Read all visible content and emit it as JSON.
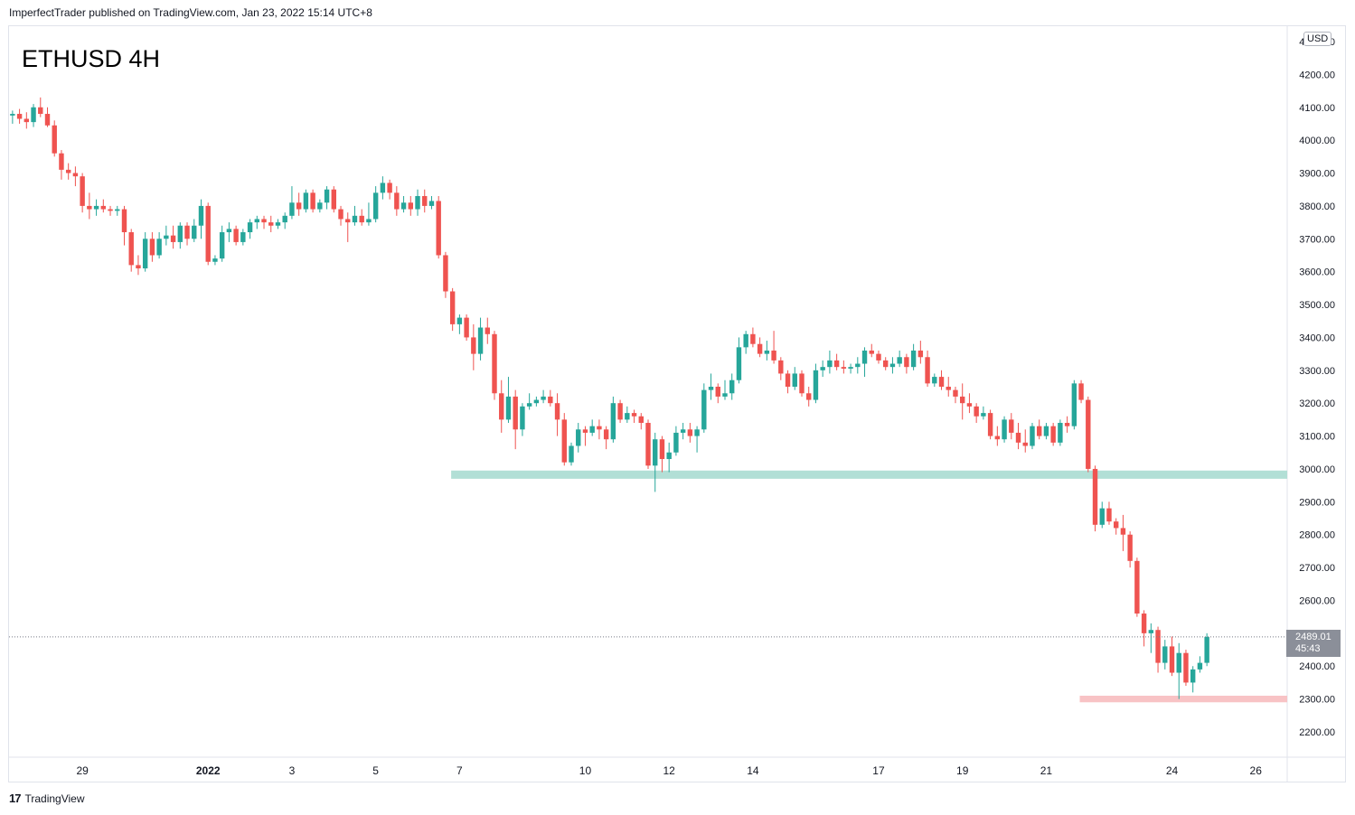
{
  "header": {
    "published": "ImperfectTrader published on TradingView.com, Jan 23, 2022 15:14 UTC+8"
  },
  "symbol": "ETHUSD 4H",
  "currency": "USD",
  "last_price": {
    "value": "2489.01",
    "countdown": "45:43"
  },
  "footer": {
    "brand": "TradingView",
    "logo_glyph": "17"
  },
  "colors": {
    "up": "#26a69a",
    "down": "#ef5350",
    "support": "#b2dfd6",
    "low_zone": "#f8c3c5",
    "grid": "#e0e3eb",
    "price_tag": "#8b8f99"
  },
  "chart_data": {
    "type": "candlestick",
    "ylim": [
      2130,
      4290
    ],
    "y_ticks": [
      "2200.00",
      "2300.00",
      "2400.00",
      "2500.00",
      "2600.00",
      "2700.00",
      "2800.00",
      "2900.00",
      "3000.00",
      "3100.00",
      "3200.00",
      "3300.00",
      "3400.00",
      "3500.00",
      "3600.00",
      "3700.00",
      "3800.00",
      "3900.00",
      "4000.00",
      "4100.00",
      "4200.00",
      "4300.00"
    ],
    "x_ticks": [
      {
        "label": "29",
        "day": -2,
        "bold": false
      },
      {
        "label": "2022",
        "day": 1,
        "bold": true
      },
      {
        "label": "3",
        "day": 3,
        "bold": false
      },
      {
        "label": "5",
        "day": 5,
        "bold": false
      },
      {
        "label": "7",
        "day": 7,
        "bold": false
      },
      {
        "label": "10",
        "day": 10,
        "bold": false
      },
      {
        "label": "12",
        "day": 12,
        "bold": false
      },
      {
        "label": "14",
        "day": 14,
        "bold": false
      },
      {
        "label": "17",
        "day": 17,
        "bold": false
      },
      {
        "label": "19",
        "day": 19,
        "bold": false
      },
      {
        "label": "21",
        "day": 21,
        "bold": false
      },
      {
        "label": "24",
        "day": 24,
        "bold": false
      },
      {
        "label": "26",
        "day": 26,
        "bold": false
      }
    ],
    "xlim_days": [
      -3.75,
      26.75
    ],
    "bar_hours": 4,
    "first_bar_day": -3.75,
    "support_zone": {
      "from_day": 6.8,
      "to_day": 26.75,
      "low": 2970,
      "high": 2995
    },
    "low_zone": {
      "from_day": 21.8,
      "to_day": 26.75,
      "low": 2290,
      "high": 2310
    },
    "last_price_line": 2489,
    "candles": [
      [
        4075,
        4090,
        4050,
        4080
      ],
      [
        4080,
        4095,
        4050,
        4065
      ],
      [
        4065,
        4085,
        4035,
        4055
      ],
      [
        4055,
        4110,
        4040,
        4100
      ],
      [
        4100,
        4130,
        4070,
        4080
      ],
      [
        4080,
        4100,
        4040,
        4045
      ],
      [
        4045,
        4060,
        3950,
        3960
      ],
      [
        3960,
        3970,
        3880,
        3910
      ],
      [
        3910,
        3930,
        3880,
        3900
      ],
      [
        3900,
        3920,
        3860,
        3890
      ],
      [
        3890,
        3900,
        3780,
        3800
      ],
      [
        3800,
        3840,
        3760,
        3790
      ],
      [
        3790,
        3820,
        3770,
        3800
      ],
      [
        3800,
        3820,
        3780,
        3790
      ],
      [
        3790,
        3800,
        3770,
        3785
      ],
      [
        3785,
        3800,
        3770,
        3790
      ],
      [
        3790,
        3800,
        3680,
        3720
      ],
      [
        3720,
        3730,
        3600,
        3620
      ],
      [
        3620,
        3650,
        3590,
        3610
      ],
      [
        3610,
        3720,
        3600,
        3700
      ],
      [
        3700,
        3720,
        3630,
        3650
      ],
      [
        3650,
        3720,
        3640,
        3700
      ],
      [
        3700,
        3740,
        3680,
        3710
      ],
      [
        3710,
        3740,
        3670,
        3690
      ],
      [
        3690,
        3750,
        3670,
        3740
      ],
      [
        3740,
        3750,
        3680,
        3700
      ],
      [
        3700,
        3760,
        3690,
        3740
      ],
      [
        3740,
        3820,
        3700,
        3800
      ],
      [
        3800,
        3810,
        3620,
        3630
      ],
      [
        3630,
        3650,
        3620,
        3640
      ],
      [
        3640,
        3740,
        3630,
        3720
      ],
      [
        3720,
        3750,
        3690,
        3730
      ],
      [
        3730,
        3740,
        3680,
        3690
      ],
      [
        3690,
        3730,
        3680,
        3720
      ],
      [
        3720,
        3760,
        3700,
        3750
      ],
      [
        3750,
        3770,
        3730,
        3760
      ],
      [
        3760,
        3770,
        3730,
        3750
      ],
      [
        3750,
        3770,
        3720,
        3740
      ],
      [
        3740,
        3760,
        3730,
        3750
      ],
      [
        3750,
        3780,
        3730,
        3770
      ],
      [
        3770,
        3860,
        3760,
        3810
      ],
      [
        3810,
        3840,
        3770,
        3790
      ],
      [
        3790,
        3850,
        3780,
        3840
      ],
      [
        3840,
        3850,
        3780,
        3790
      ],
      [
        3790,
        3820,
        3780,
        3810
      ],
      [
        3810,
        3860,
        3790,
        3850
      ],
      [
        3850,
        3860,
        3780,
        3790
      ],
      [
        3790,
        3800,
        3740,
        3760
      ],
      [
        3760,
        3780,
        3690,
        3750
      ],
      [
        3750,
        3800,
        3740,
        3770
      ],
      [
        3770,
        3790,
        3740,
        3750
      ],
      [
        3750,
        3810,
        3740,
        3760
      ],
      [
        3760,
        3860,
        3750,
        3840
      ],
      [
        3840,
        3890,
        3820,
        3870
      ],
      [
        3870,
        3880,
        3820,
        3840
      ],
      [
        3840,
        3860,
        3770,
        3790
      ],
      [
        3790,
        3830,
        3780,
        3810
      ],
      [
        3810,
        3830,
        3770,
        3790
      ],
      [
        3790,
        3850,
        3770,
        3830
      ],
      [
        3830,
        3850,
        3780,
        3800
      ],
      [
        3800,
        3830,
        3790,
        3815
      ],
      [
        3815,
        3830,
        3640,
        3650
      ],
      [
        3650,
        3660,
        3520,
        3540
      ],
      [
        3540,
        3550,
        3420,
        3440
      ],
      [
        3440,
        3470,
        3410,
        3460
      ],
      [
        3460,
        3470,
        3390,
        3400
      ],
      [
        3400,
        3440,
        3300,
        3350
      ],
      [
        3350,
        3460,
        3330,
        3430
      ],
      [
        3430,
        3460,
        3380,
        3410
      ],
      [
        3410,
        3420,
        3210,
        3230
      ],
      [
        3230,
        3270,
        3110,
        3150
      ],
      [
        3150,
        3280,
        3140,
        3220
      ],
      [
        3220,
        3240,
        3060,
        3120
      ],
      [
        3120,
        3200,
        3100,
        3190
      ],
      [
        3190,
        3230,
        3180,
        3200
      ],
      [
        3200,
        3220,
        3190,
        3210
      ],
      [
        3210,
        3240,
        3200,
        3220
      ],
      [
        3220,
        3240,
        3190,
        3200
      ],
      [
        3200,
        3230,
        3100,
        3150
      ],
      [
        3150,
        3170,
        3010,
        3020
      ],
      [
        3020,
        3080,
        3010,
        3070
      ],
      [
        3070,
        3140,
        3050,
        3120
      ],
      [
        3120,
        3130,
        3070,
        3110
      ],
      [
        3110,
        3150,
        3100,
        3130
      ],
      [
        3130,
        3150,
        3090,
        3120
      ],
      [
        3120,
        3130,
        3060,
        3090
      ],
      [
        3090,
        3220,
        3080,
        3200
      ],
      [
        3200,
        3210,
        3140,
        3150
      ],
      [
        3150,
        3190,
        3140,
        3170
      ],
      [
        3170,
        3180,
        3140,
        3160
      ],
      [
        3160,
        3170,
        3120,
        3140
      ],
      [
        3140,
        3150,
        3000,
        3010
      ],
      [
        3010,
        3110,
        2930,
        3090
      ],
      [
        3090,
        3100,
        2990,
        3030
      ],
      [
        3030,
        3080,
        2990,
        3050
      ],
      [
        3050,
        3130,
        3040,
        3110
      ],
      [
        3110,
        3140,
        3090,
        3120
      ],
      [
        3120,
        3140,
        3080,
        3100
      ],
      [
        3100,
        3130,
        3050,
        3120
      ],
      [
        3120,
        3260,
        3110,
        3240
      ],
      [
        3240,
        3290,
        3210,
        3250
      ],
      [
        3250,
        3260,
        3200,
        3220
      ],
      [
        3220,
        3270,
        3210,
        3230
      ],
      [
        3230,
        3290,
        3210,
        3270
      ],
      [
        3270,
        3400,
        3260,
        3370
      ],
      [
        3370,
        3420,
        3350,
        3410
      ],
      [
        3410,
        3430,
        3370,
        3380
      ],
      [
        3380,
        3400,
        3340,
        3350
      ],
      [
        3350,
        3390,
        3330,
        3360
      ],
      [
        3360,
        3420,
        3320,
        3330
      ],
      [
        3330,
        3340,
        3270,
        3290
      ],
      [
        3290,
        3300,
        3230,
        3250
      ],
      [
        3250,
        3310,
        3240,
        3290
      ],
      [
        3290,
        3300,
        3220,
        3230
      ],
      [
        3230,
        3250,
        3190,
        3210
      ],
      [
        3210,
        3320,
        3200,
        3300
      ],
      [
        3300,
        3330,
        3280,
        3310
      ],
      [
        3310,
        3360,
        3290,
        3330
      ],
      [
        3330,
        3350,
        3300,
        3310
      ],
      [
        3310,
        3330,
        3290,
        3305
      ],
      [
        3305,
        3320,
        3290,
        3310
      ],
      [
        3310,
        3340,
        3290,
        3320
      ],
      [
        3320,
        3370,
        3280,
        3360
      ],
      [
        3360,
        3380,
        3340,
        3350
      ],
      [
        3350,
        3360,
        3320,
        3330
      ],
      [
        3330,
        3340,
        3300,
        3310
      ],
      [
        3310,
        3340,
        3290,
        3320
      ],
      [
        3320,
        3360,
        3310,
        3340
      ],
      [
        3340,
        3350,
        3290,
        3310
      ],
      [
        3310,
        3380,
        3300,
        3360
      ],
      [
        3360,
        3390,
        3320,
        3340
      ],
      [
        3340,
        3360,
        3250,
        3260
      ],
      [
        3260,
        3290,
        3250,
        3280
      ],
      [
        3280,
        3300,
        3240,
        3250
      ],
      [
        3250,
        3280,
        3220,
        3240
      ],
      [
        3240,
        3250,
        3200,
        3220
      ],
      [
        3220,
        3260,
        3150,
        3200
      ],
      [
        3200,
        3230,
        3170,
        3190
      ],
      [
        3190,
        3200,
        3140,
        3160
      ],
      [
        3160,
        3190,
        3150,
        3170
      ],
      [
        3170,
        3180,
        3090,
        3100
      ],
      [
        3100,
        3130,
        3070,
        3090
      ],
      [
        3090,
        3160,
        3080,
        3150
      ],
      [
        3150,
        3170,
        3090,
        3110
      ],
      [
        3110,
        3140,
        3060,
        3080
      ],
      [
        3080,
        3120,
        3050,
        3070
      ],
      [
        3070,
        3140,
        3060,
        3130
      ],
      [
        3130,
        3150,
        3090,
        3100
      ],
      [
        3100,
        3140,
        3090,
        3130
      ],
      [
        3130,
        3140,
        3070,
        3080
      ],
      [
        3080,
        3150,
        3070,
        3140
      ],
      [
        3140,
        3160,
        3110,
        3130
      ],
      [
        3130,
        3270,
        3120,
        3260
      ],
      [
        3260,
        3270,
        3200,
        3210
      ],
      [
        3210,
        3220,
        2990,
        3000
      ],
      [
        3000,
        3010,
        2810,
        2830
      ],
      [
        2830,
        2900,
        2820,
        2880
      ],
      [
        2880,
        2900,
        2830,
        2840
      ],
      [
        2840,
        2850,
        2800,
        2820
      ],
      [
        2820,
        2860,
        2750,
        2800
      ],
      [
        2800,
        2810,
        2700,
        2720
      ],
      [
        2720,
        2730,
        2550,
        2560
      ],
      [
        2560,
        2570,
        2460,
        2500
      ],
      [
        2500,
        2530,
        2440,
        2510
      ],
      [
        2510,
        2520,
        2380,
        2410
      ],
      [
        2410,
        2480,
        2390,
        2460
      ],
      [
        2460,
        2490,
        2370,
        2380
      ],
      [
        2380,
        2470,
        2300,
        2440
      ],
      [
        2440,
        2450,
        2340,
        2350
      ],
      [
        2350,
        2400,
        2320,
        2390
      ],
      [
        2390,
        2430,
        2380,
        2410
      ],
      [
        2410,
        2500,
        2400,
        2489
      ]
    ]
  }
}
